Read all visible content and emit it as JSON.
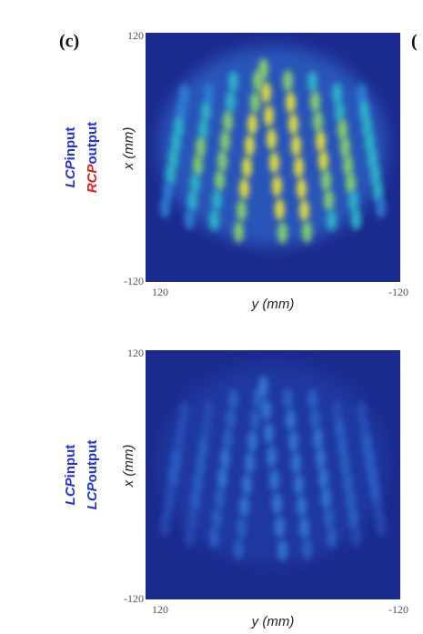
{
  "panel_label": "(c)",
  "next_panel_label": "(",
  "plots": [
    {
      "input_label": {
        "pol": "LCP",
        "word": "input"
      },
      "output_label": {
        "pol": "RCP",
        "word": "output"
      },
      "x_axis_label": "y (mm)",
      "y_axis_label": "x (mm)",
      "y_tick_top": "120",
      "y_tick_bottom": "-120",
      "x_tick_left": "120",
      "x_tick_right": "-120"
    },
    {
      "input_label": {
        "pol": "LCP",
        "word": "input"
      },
      "output_label": {
        "pol": "LCP",
        "word": "output"
      },
      "x_axis_label": "y (mm)",
      "y_axis_label": "x (mm)",
      "y_tick_top": "120",
      "y_tick_bottom": "-120",
      "x_tick_left": "120",
      "x_tick_right": "-120"
    }
  ]
}
